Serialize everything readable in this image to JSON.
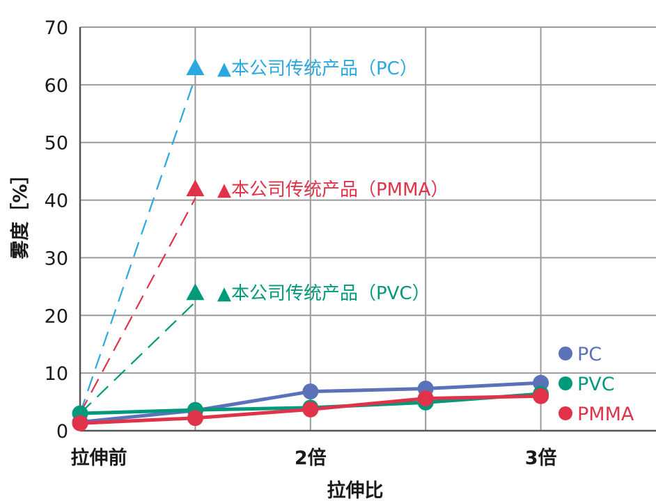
{
  "chart_data": {
    "type": "line",
    "xlabel": "拉伸比",
    "ylabel": "雾度［%］",
    "ylim": [
      0,
      70
    ],
    "yticks": [
      "0",
      "10",
      "20",
      "30",
      "40",
      "50",
      "60",
      "70"
    ],
    "x": [
      1,
      1.5,
      2,
      2.5,
      3
    ],
    "xticks": [
      {
        "x": 1,
        "label": "拉伸前"
      },
      {
        "x": 2,
        "label": "2倍"
      },
      {
        "x": 3,
        "label": "3倍"
      }
    ],
    "xlim": [
      1,
      3.5
    ],
    "grid": true,
    "legend_position": "bottom-right",
    "series": [
      {
        "name": "PC",
        "color": "#5b72b9",
        "values": [
          1.5,
          3.5,
          6.8,
          7.3,
          8.3
        ]
      },
      {
        "name": "PVC",
        "color": "#00997a",
        "values": [
          3.0,
          3.6,
          4.0,
          4.9,
          6.4
        ]
      },
      {
        "name": "PMMA",
        "color": "#e0334a",
        "values": [
          1.3,
          2.2,
          3.7,
          5.6,
          6.0
        ]
      }
    ],
    "conventional": [
      {
        "label": "▲本公司传统产品（PC）",
        "color": "#2aa8df",
        "from": [
          1,
          3
        ],
        "to": [
          1.5,
          63
        ]
      },
      {
        "label": "▲本公司传统产品（PMMA）",
        "color": "#e0334a",
        "from": [
          1,
          3
        ],
        "to": [
          1.5,
          42
        ]
      },
      {
        "label": "▲本公司传统产品（PVC）",
        "color": "#00997a",
        "from": [
          1,
          3
        ],
        "to": [
          1.5,
          24
        ]
      }
    ]
  }
}
